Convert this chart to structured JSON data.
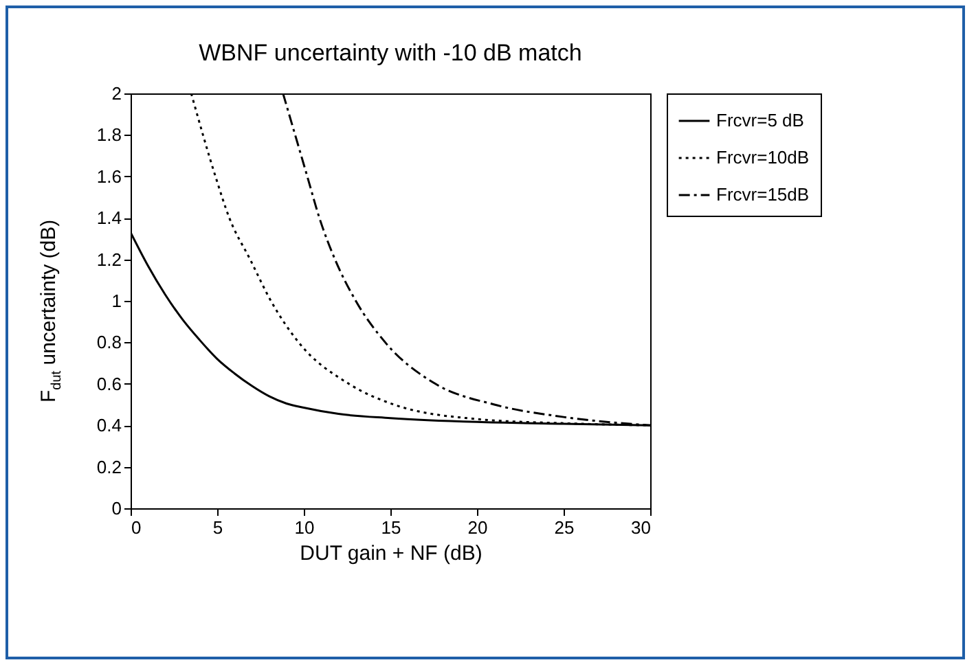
{
  "chart_data": {
    "type": "line",
    "title": "WBNF uncertainty with -10 dB match",
    "xlabel": "DUT gain + NF (dB)",
    "ylabel": "F$_{dut}$ uncertainty (dB)",
    "xlim": [
      0,
      30
    ],
    "xticks": [
      0,
      5,
      10,
      15,
      20,
      25,
      30
    ],
    "ylim": [
      0,
      2
    ],
    "yticks": [
      0,
      0.2,
      0.4,
      0.6,
      0.8,
      1,
      1.2,
      1.4,
      1.6,
      1.8,
      2
    ],
    "grid": false,
    "legend": "right",
    "marker": "none",
    "series": [
      {
        "name": "Frcvr=5 dB",
        "color": "#000000",
        "line_style": "solid",
        "x": [
          0,
          1,
          2,
          3,
          4,
          5,
          6,
          7,
          8,
          9,
          10,
          12,
          15,
          20,
          25,
          30
        ],
        "values": [
          1.33,
          1.17,
          1.03,
          0.91,
          0.81,
          0.72,
          0.65,
          0.59,
          0.54,
          0.505,
          0.485,
          0.455,
          0.435,
          0.416,
          0.407,
          0.4
        ]
      },
      {
        "name": "Frcvr=10dB",
        "color": "#000000",
        "line_style": "dotted",
        "x": [
          3.5,
          4.9,
          5.7,
          6.9,
          8.1,
          9.7,
          12.6,
          15.2,
          20,
          25,
          30
        ],
        "values": [
          2,
          1.6,
          1.4,
          1.2,
          1.0,
          0.8,
          0.6,
          0.5,
          0.43,
          0.41,
          0.4
        ]
      },
      {
        "name": "Frcvr=15dB",
        "color": "#000000",
        "line_style": "dashdot",
        "x": [
          8.8,
          10.2,
          10.9,
          11.8,
          13.0,
          14.7,
          17.6,
          21.0,
          25,
          30
        ],
        "values": [
          2,
          1.6,
          1.4,
          1.2,
          1.0,
          0.8,
          0.6,
          0.5,
          0.44,
          0.4
        ]
      }
    ]
  }
}
